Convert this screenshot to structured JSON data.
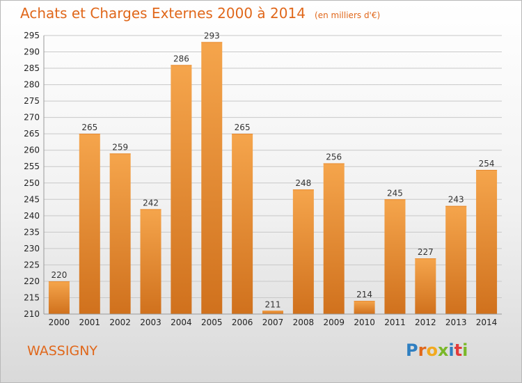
{
  "header": {
    "title": "Achats et Charges Externes 2000 à 2014",
    "unit": "(en milliers d'€)"
  },
  "footer": {
    "commune": "WASSIGNY",
    "logo_text": "Proxiti",
    "logo_colors": [
      "#2f7fc1",
      "#e0671a",
      "#f2a91f",
      "#7ab829",
      "#2f7fc1",
      "#e23b3b",
      "#7ab829"
    ]
  },
  "colors": {
    "bar_light": "#f5a54c",
    "bar_dark": "#d0711d",
    "grid": "#c8c8c8",
    "title": "#e0671a"
  },
  "chart_data": {
    "type": "bar",
    "categories": [
      "2000",
      "2001",
      "2002",
      "2003",
      "2004",
      "2005",
      "2006",
      "2007",
      "2008",
      "2009",
      "2010",
      "2011",
      "2012",
      "2013",
      "2014"
    ],
    "values": [
      220,
      265,
      259,
      242,
      286,
      293,
      265,
      211,
      248,
      256,
      214,
      245,
      227,
      243,
      254
    ],
    "title": "Achats et Charges Externes 2000 à 2014",
    "subtitle": "(en milliers d'€)",
    "ylim": [
      210,
      295
    ],
    "yticks": [
      210,
      215,
      220,
      225,
      230,
      235,
      240,
      245,
      250,
      255,
      260,
      265,
      270,
      275,
      280,
      285,
      290,
      295
    ],
    "grid": true,
    "data_labels": true
  }
}
